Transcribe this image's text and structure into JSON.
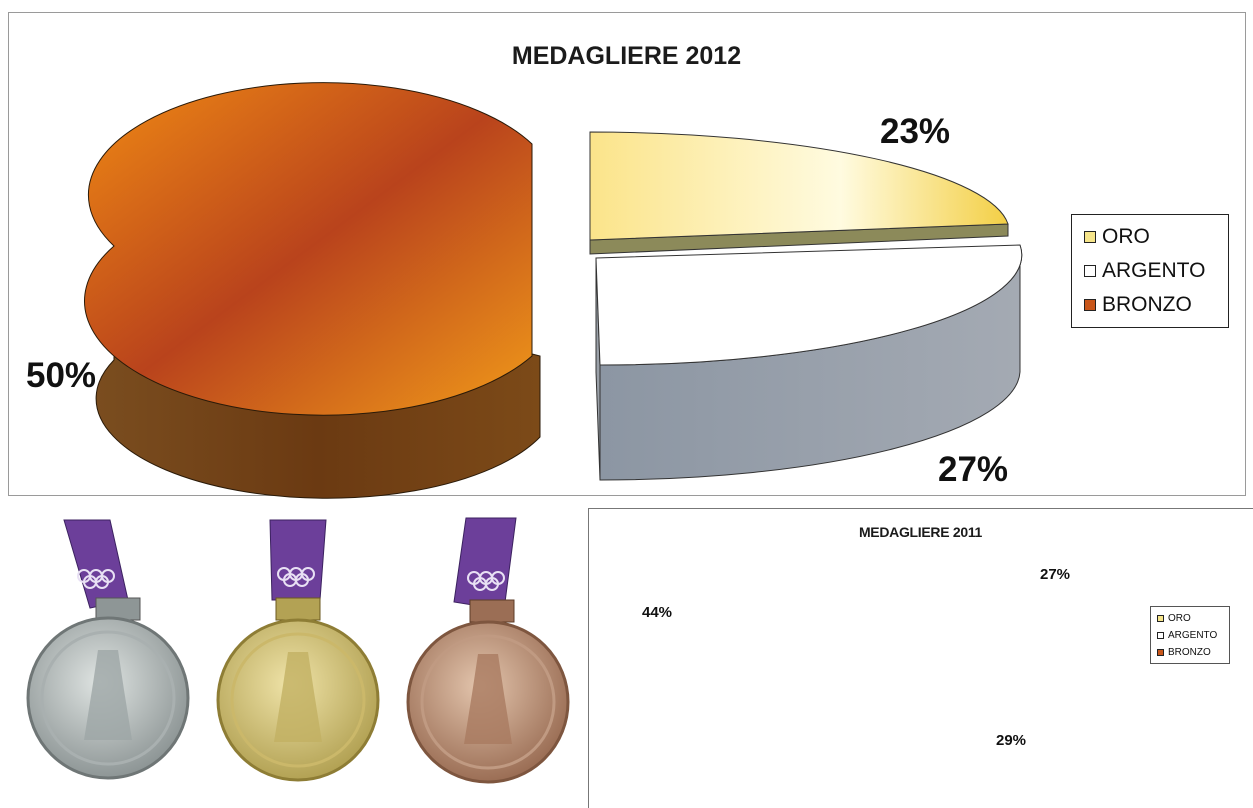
{
  "chart_data": [
    {
      "type": "pie",
      "title": "MEDAGLIERE 2012",
      "categories": [
        "ORO",
        "ARGENTO",
        "BRONZO"
      ],
      "values": [
        23,
        27,
        50
      ],
      "labels": [
        "23%",
        "27%",
        "50%"
      ],
      "legend_position": "right",
      "colors": [
        "#f6d44a",
        "#ffffff",
        "#c8561a"
      ]
    },
    {
      "type": "pie",
      "title": "MEDAGLIERE 2011",
      "categories": [
        "ORO",
        "ARGENTO",
        "BRONZO"
      ],
      "values": [
        27,
        29,
        44
      ],
      "labels": [
        "27%",
        "29%",
        "44%"
      ],
      "legend_position": "right",
      "colors": [
        "#f6d44a",
        "#ffffff",
        "#c8561a"
      ]
    }
  ],
  "medals": [
    {
      "name": "silver-medal",
      "color": "#b8bcbc"
    },
    {
      "name": "gold-medal",
      "color": "#d9c772"
    },
    {
      "name": "bronze-medal",
      "color": "#c59a7b"
    }
  ],
  "colors": {
    "ribbon": "#6c3f9a",
    "oro_side": "#8c8a5a",
    "argento_side": "#8f99a6",
    "bronzo_side": "#6b3a12"
  }
}
